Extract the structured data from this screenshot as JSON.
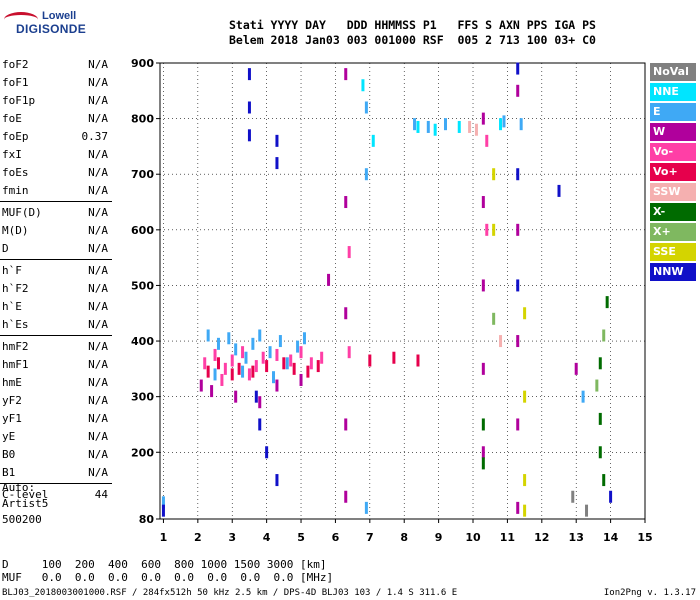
{
  "logo": {
    "line1": "Lowell",
    "line2": "DIGISONDE"
  },
  "header": {
    "line1": "Stati YYYY DAY   DDD HHMMSS P1   FFS S AXN PPS IGA PS",
    "line2": "Belem 2018 Jan03 003 001000 RSF  005 2 713 100 03+ C0"
  },
  "params": [
    {
      "group": [
        {
          "name": "foF2",
          "value": "N/A"
        },
        {
          "name": "foF1",
          "value": "N/A"
        },
        {
          "name": "foF1p",
          "value": "N/A"
        },
        {
          "name": "foE",
          "value": "N/A"
        },
        {
          "name": "foEp",
          "value": "0.37"
        },
        {
          "name": "fxI",
          "value": "N/A"
        },
        {
          "name": "foEs",
          "value": "N/A"
        },
        {
          "name": "fmin",
          "value": "N/A"
        }
      ]
    },
    {
      "group": [
        {
          "name": "MUF(D)",
          "value": "N/A"
        },
        {
          "name": "M(D)",
          "value": "N/A"
        },
        {
          "name": "D",
          "value": "N/A"
        }
      ]
    },
    {
      "group": [
        {
          "name": "h`F",
          "value": "N/A"
        },
        {
          "name": "h`F2",
          "value": "N/A"
        },
        {
          "name": "h`E",
          "value": "N/A"
        },
        {
          "name": "h`Es",
          "value": "N/A"
        }
      ]
    },
    {
      "group": [
        {
          "name": "hmF2",
          "value": "N/A"
        },
        {
          "name": "hmF1",
          "value": "N/A"
        },
        {
          "name": "hmE",
          "value": "N/A"
        },
        {
          "name": "yF2",
          "value": "N/A"
        },
        {
          "name": "yF1",
          "value": "N/A"
        },
        {
          "name": "yE",
          "value": "N/A"
        },
        {
          "name": "B0",
          "value": "N/A"
        },
        {
          "name": "B1",
          "value": "N/A"
        }
      ]
    },
    {
      "group": [
        {
          "name": "C-level",
          "value": "44"
        }
      ]
    }
  ],
  "auto": {
    "line1": "Auto:",
    "line2": "Artist5",
    "line3": "500200"
  },
  "legend": [
    {
      "label": "NoVal",
      "color": "#808080"
    },
    {
      "label": "NNE",
      "color": "#00e5ff"
    },
    {
      "label": "E",
      "color": "#3fa9f5"
    },
    {
      "label": "W",
      "color": "#b0009c"
    },
    {
      "label": "Vo-",
      "color": "#ff3fa6"
    },
    {
      "label": "Vo+",
      "color": "#e6004c"
    },
    {
      "label": "SSW",
      "color": "#f5b0b0"
    },
    {
      "label": "X-",
      "color": "#006b00"
    },
    {
      "label": "X+",
      "color": "#7fb860"
    },
    {
      "label": "SSE",
      "color": "#d4d400"
    },
    {
      "label": "NNW",
      "color": "#1010c8"
    }
  ],
  "dtable": {
    "line1": "D     100  200  400  600  800 1000 1500 3000 [km]",
    "line2": "MUF   0.0  0.0  0.0  0.0  0.0  0.0  0.0  0.0 [MHz]"
  },
  "footer": {
    "text": "BLJ03_2018003001000.RSF / 284fx512h 50 kHz 2.5 km / DPS-4D BLJ03 103 / 1.4 S 311.6 E",
    "version": "Ion2Png v. 1.3.17"
  },
  "chart_data": {
    "type": "scatter",
    "title": "",
    "xlabel": "",
    "ylabel": "",
    "x_unit": "MHz",
    "y_unit": "km",
    "xlim": [
      0.9,
      15.0
    ],
    "ylim": [
      80,
      900
    ],
    "x_ticks": [
      "1",
      "2",
      "3",
      "4",
      "5",
      "6",
      "7",
      "8",
      "9",
      "10",
      "11",
      "12",
      "13",
      "14",
      "15"
    ],
    "y_ticks": [
      "80",
      "200",
      "300",
      "400",
      "500",
      "600",
      "700",
      "800",
      "900"
    ],
    "grid": "dotted",
    "legend_placement": "right",
    "series": [
      {
        "name": "E",
        "color": "#3fa9f5",
        "points": [
          [
            2.3,
            410
          ],
          [
            2.6,
            395
          ],
          [
            2.9,
            405
          ],
          [
            3.1,
            385
          ],
          [
            3.4,
            370
          ],
          [
            3.6,
            395
          ],
          [
            3.8,
            410
          ],
          [
            4.1,
            380
          ],
          [
            4.4,
            400
          ],
          [
            4.6,
            360
          ],
          [
            4.9,
            390
          ],
          [
            5.1,
            405
          ],
          [
            2.5,
            340
          ],
          [
            3.3,
            345
          ],
          [
            4.2,
            335
          ],
          [
            6.9,
            820
          ],
          [
            6.9,
            700
          ],
          [
            6.9,
            100
          ],
          [
            8.3,
            790
          ],
          [
            8.7,
            785
          ],
          [
            9.2,
            790
          ],
          [
            10.9,
            795
          ],
          [
            11.4,
            790
          ],
          [
            1.0,
            110
          ],
          [
            13.2,
            300
          ]
        ]
      },
      {
        "name": "Vo-",
        "color": "#ff3fa6",
        "points": [
          [
            2.2,
            360
          ],
          [
            2.5,
            375
          ],
          [
            2.8,
            350
          ],
          [
            3.0,
            365
          ],
          [
            3.3,
            380
          ],
          [
            3.7,
            355
          ],
          [
            3.9,
            370
          ],
          [
            4.3,
            375
          ],
          [
            4.7,
            365
          ],
          [
            5.0,
            380
          ],
          [
            5.3,
            360
          ],
          [
            5.6,
            370
          ],
          [
            2.7,
            330
          ],
          [
            3.5,
            340
          ],
          [
            6.4,
            380
          ],
          [
            10.4,
            760
          ],
          [
            10.4,
            600
          ],
          [
            6.4,
            560
          ]
        ]
      },
      {
        "name": "Vo+",
        "color": "#e6004c",
        "points": [
          [
            2.3,
            345
          ],
          [
            2.6,
            360
          ],
          [
            3.0,
            340
          ],
          [
            3.2,
            350
          ],
          [
            3.6,
            345
          ],
          [
            4.0,
            355
          ],
          [
            4.5,
            360
          ],
          [
            4.8,
            350
          ],
          [
            5.2,
            345
          ],
          [
            5.5,
            355
          ],
          [
            7.0,
            365
          ],
          [
            7.7,
            370
          ],
          [
            8.4,
            365
          ]
        ]
      },
      {
        "name": "W",
        "color": "#b0009c",
        "points": [
          [
            2.1,
            320
          ],
          [
            2.4,
            310
          ],
          [
            3.1,
            300
          ],
          [
            3.8,
            290
          ],
          [
            4.3,
            320
          ],
          [
            5.0,
            330
          ],
          [
            6.3,
            880
          ],
          [
            6.3,
            650
          ],
          [
            6.3,
            450
          ],
          [
            6.3,
            250
          ],
          [
            6.3,
            120
          ],
          [
            10.3,
            800
          ],
          [
            10.3,
            650
          ],
          [
            10.3,
            500
          ],
          [
            10.3,
            350
          ],
          [
            10.3,
            200
          ],
          [
            11.3,
            850
          ],
          [
            11.3,
            600
          ],
          [
            11.3,
            400
          ],
          [
            11.3,
            250
          ],
          [
            11.3,
            100
          ],
          [
            13.0,
            350
          ],
          [
            5.8,
            510
          ]
        ]
      },
      {
        "name": "NNE",
        "color": "#00e5ff",
        "points": [
          [
            8.4,
            785
          ],
          [
            8.9,
            780
          ],
          [
            9.6,
            785
          ],
          [
            10.8,
            790
          ],
          [
            6.8,
            860
          ],
          [
            7.1,
            760
          ]
        ]
      },
      {
        "name": "X-",
        "color": "#006b00",
        "points": [
          [
            10.3,
            250
          ],
          [
            10.3,
            180
          ],
          [
            13.7,
            360
          ],
          [
            13.7,
            260
          ],
          [
            13.7,
            200
          ],
          [
            13.8,
            150
          ],
          [
            13.9,
            470
          ]
        ]
      },
      {
        "name": "X+",
        "color": "#7fb860",
        "points": [
          [
            13.6,
            320
          ],
          [
            13.8,
            410
          ],
          [
            10.6,
            440
          ]
        ]
      },
      {
        "name": "SSE",
        "color": "#d4d400",
        "points": [
          [
            10.6,
            700
          ],
          [
            10.6,
            600
          ],
          [
            11.5,
            450
          ],
          [
            11.5,
            300
          ],
          [
            11.5,
            150
          ],
          [
            11.5,
            95
          ]
        ]
      },
      {
        "name": "SSW",
        "color": "#f5b0b0",
        "points": [
          [
            9.9,
            785
          ],
          [
            10.1,
            780
          ],
          [
            10.8,
            400
          ]
        ]
      },
      {
        "name": "NNW",
        "color": "#1010c8",
        "points": [
          [
            3.5,
            880
          ],
          [
            3.5,
            820
          ],
          [
            3.5,
            770
          ],
          [
            4.3,
            760
          ],
          [
            4.3,
            720
          ],
          [
            3.7,
            300
          ],
          [
            3.8,
            250
          ],
          [
            4.0,
            200
          ],
          [
            4.3,
            150
          ],
          [
            11.3,
            890
          ],
          [
            11.3,
            700
          ],
          [
            11.3,
            500
          ],
          [
            12.5,
            670
          ],
          [
            14.0,
            120
          ],
          [
            1.0,
            95
          ]
        ]
      },
      {
        "name": "NoVal",
        "color": "#808080",
        "points": [
          [
            12.9,
            120
          ],
          [
            13.3,
            95
          ]
        ]
      }
    ]
  }
}
